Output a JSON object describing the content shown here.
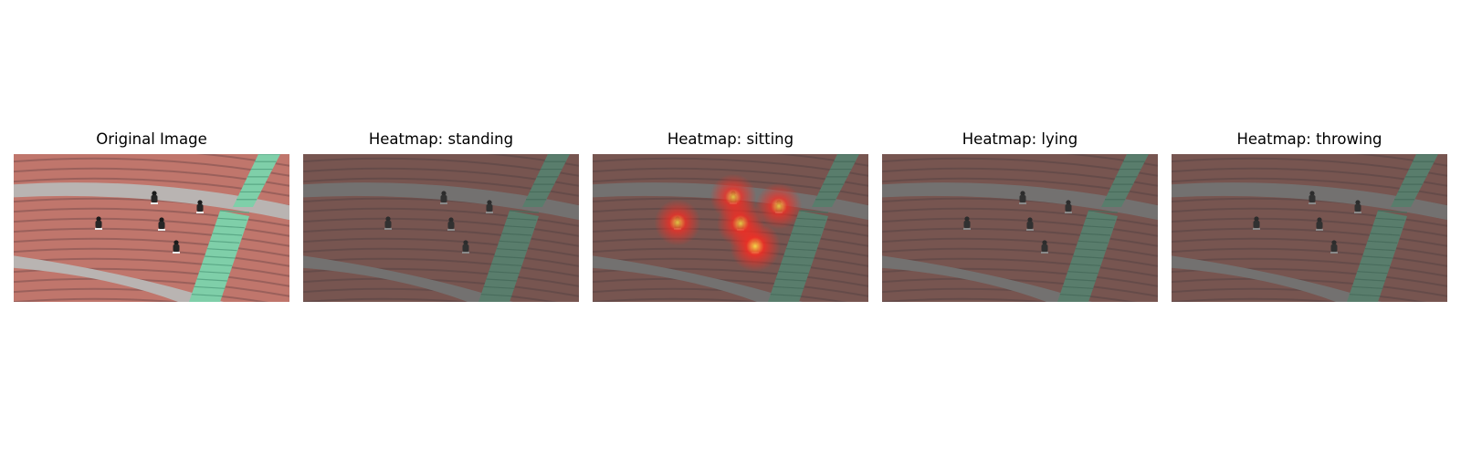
{
  "figure": {
    "panels": [
      {
        "id": "original",
        "title": "Original Image",
        "dimmed": false,
        "heat_spots": []
      },
      {
        "id": "standing",
        "title": "Heatmap: standing",
        "dimmed": true,
        "heat_spots": []
      },
      {
        "id": "sitting",
        "title": "Heatmap: sitting",
        "dimmed": true,
        "heat_spots": [
          {
            "person": 1,
            "intensity": 0.75
          },
          {
            "person": 2,
            "intensity": 0.75
          },
          {
            "person": 3,
            "intensity": 0.75
          },
          {
            "person": 4,
            "intensity": 0.8
          },
          {
            "person": 5,
            "intensity": 1.0
          }
        ]
      },
      {
        "id": "lying",
        "title": "Heatmap: lying",
        "dimmed": true,
        "heat_spots": []
      },
      {
        "id": "throwing",
        "title": "Heatmap: throwing",
        "dimmed": true,
        "heat_spots": []
      }
    ],
    "colors": {
      "track_red": "#c0766c",
      "track_line": "#8d5a55",
      "walkway": "#b9b4b2",
      "stairs": "#7fcfa9",
      "dim_overlay": "#3a3a3a",
      "heat_outer": "#ff2a20",
      "heat_inner": "#ffe04a"
    }
  }
}
